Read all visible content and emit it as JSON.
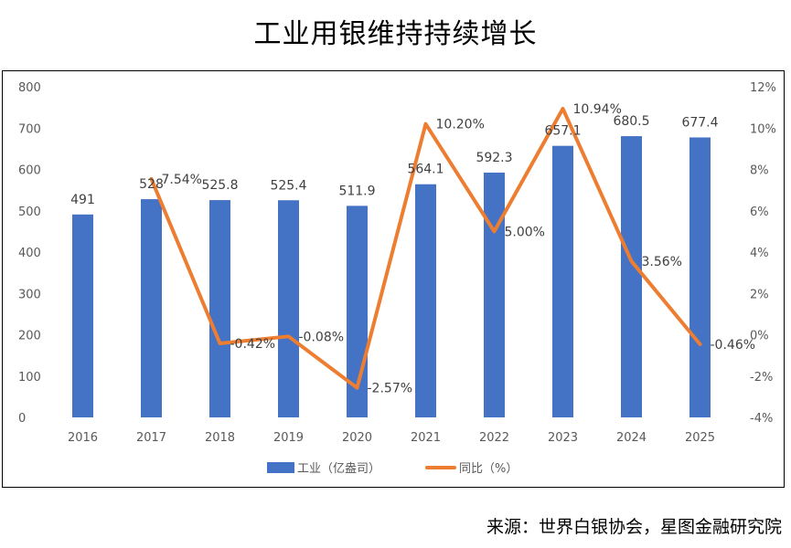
{
  "title": "工业用银维持持续增长",
  "source": "来源：世界白银协会，星图金融研究院",
  "colors": {
    "bar": "#4472C4",
    "line": "#ED7D31",
    "axis_text": "#595959",
    "label": "#404040"
  },
  "chart_data": {
    "type": "bar+line",
    "categories": [
      "2016",
      "2017",
      "2018",
      "2019",
      "2020",
      "2021",
      "2022",
      "2023",
      "2024",
      "2025"
    ],
    "series": [
      {
        "name": "工业（亿盎司）",
        "type": "bar",
        "axis": "left",
        "values": [
          491,
          528,
          525.8,
          525.4,
          511.9,
          564.1,
          592.3,
          657.1,
          680.5,
          677.4
        ],
        "labels": [
          "491",
          "528",
          "525.8",
          "525.4",
          "511.9",
          "564.1",
          "592.3",
          "657.1",
          "680.5",
          "677.4"
        ]
      },
      {
        "name": "同比（%）",
        "type": "line",
        "axis": "right",
        "values": [
          null,
          7.54,
          -0.42,
          -0.08,
          -2.57,
          10.2,
          5.0,
          10.94,
          3.56,
          -0.46
        ],
        "labels": [
          null,
          "7.54%",
          "-0.42%",
          "-0.08%",
          "-2.57%",
          "10.20%",
          "5.00%",
          "10.94%",
          "3.56%",
          "-0.46%"
        ]
      }
    ],
    "left_axis": {
      "ylim": [
        0,
        800
      ],
      "ticks": [
        "0",
        "100",
        "200",
        "300",
        "400",
        "500",
        "600",
        "700",
        "800"
      ]
    },
    "right_axis": {
      "ylim": [
        -4,
        12
      ],
      "ticks": [
        "-4%",
        "-2%",
        "0%",
        "2%",
        "4%",
        "6%",
        "8%",
        "10%",
        "12%"
      ]
    },
    "legend": {
      "position": "bottom",
      "items": [
        "工业（亿盎司）",
        "同比（%）"
      ]
    }
  }
}
